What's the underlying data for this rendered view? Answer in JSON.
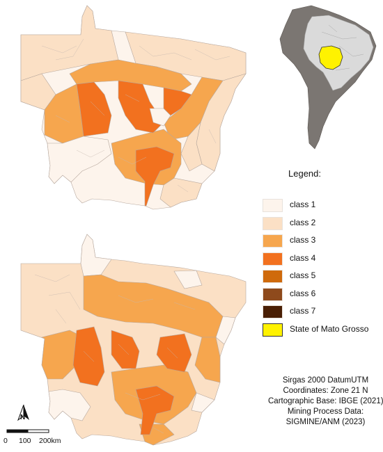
{
  "legend": {
    "title": "Legend:",
    "items": [
      {
        "label": "class 1",
        "color": "#fdf4ec"
      },
      {
        "label": "class 2",
        "color": "#fbe0c5"
      },
      {
        "label": "class 3",
        "color": "#f6a64e"
      },
      {
        "label": "class 4",
        "color": "#f2711f"
      },
      {
        "label": "class 5",
        "color": "#cf6a0c"
      },
      {
        "label": "class 6",
        "color": "#8e4a1c"
      },
      {
        "label": "class 7",
        "color": "#4a1f05"
      },
      {
        "label": "State of Mato Grosso",
        "color": "#fff200"
      }
    ]
  },
  "info": {
    "line1": "Sirgas 2000 DatumUTM",
    "line2": "Coordinates: Zone 21 N",
    "line3": "Cartographic Base: IBGE (2021)",
    "line4": "Mining Process Data:",
    "line5": "SIGMINE/ANM (2023)"
  },
  "north_arrow": {
    "label": "N"
  },
  "scale": {
    "tick0": "0",
    "tick1": "100",
    "tick2": "200km"
  },
  "colors": {
    "outline": "#b6a79d",
    "inset_continent": "#7b7672",
    "inset_neighbors": "#dadada",
    "inset_highlight": "#fff200"
  }
}
